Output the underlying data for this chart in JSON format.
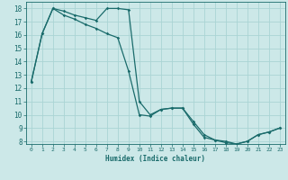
{
  "xlabel": "Humidex (Indice chaleur)",
  "bg_color": "#cce8e8",
  "grid_color": "#aad4d4",
  "line_color": "#1a6b6b",
  "xlim": [
    -0.5,
    23.5
  ],
  "ylim": [
    7.8,
    18.5
  ],
  "xticks": [
    0,
    1,
    2,
    3,
    4,
    5,
    6,
    7,
    8,
    9,
    10,
    11,
    12,
    13,
    14,
    15,
    16,
    17,
    18,
    19,
    20,
    21,
    22,
    23
  ],
  "yticks": [
    8,
    9,
    10,
    11,
    12,
    13,
    14,
    15,
    16,
    17,
    18
  ],
  "line1_x": [
    0,
    1,
    2,
    3,
    4,
    5,
    6,
    7,
    8,
    9,
    10,
    11,
    12,
    13,
    14,
    15,
    16,
    17,
    18,
    19,
    20,
    21,
    22,
    23
  ],
  "line1_y": [
    12.5,
    16.1,
    18.0,
    17.8,
    17.5,
    17.3,
    17.1,
    18.0,
    18.0,
    17.9,
    11.0,
    10.0,
    10.4,
    10.5,
    10.5,
    9.5,
    8.5,
    8.1,
    8.0,
    7.8,
    8.0,
    8.5,
    8.7,
    9.0
  ],
  "line2_x": [
    0,
    1,
    2,
    3,
    4,
    5,
    6,
    7,
    8,
    9,
    10,
    11,
    12,
    13,
    14,
    15,
    16,
    17,
    18,
    19,
    20,
    21,
    22,
    23
  ],
  "line2_y": [
    12.5,
    16.1,
    18.0,
    17.5,
    17.2,
    16.8,
    16.5,
    16.1,
    15.8,
    13.3,
    10.0,
    9.9,
    10.4,
    10.5,
    10.5,
    9.3,
    8.3,
    8.1,
    7.9,
    7.8,
    8.0,
    8.5,
    8.7,
    9.0
  ]
}
